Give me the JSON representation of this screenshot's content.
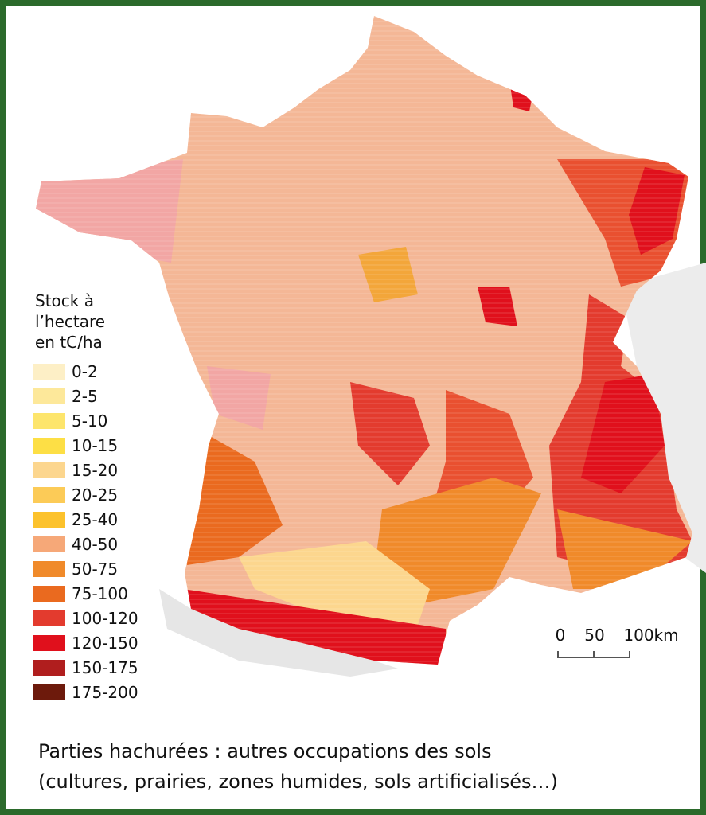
{
  "legend": {
    "title": [
      "Stock à",
      "l’hectare",
      "en tC/ha"
    ],
    "items": [
      {
        "label": "0-2",
        "color": "#fdefc6"
      },
      {
        "label": "2-5",
        "color": "#fde89a"
      },
      {
        "label": "5-10",
        "color": "#fde56c"
      },
      {
        "label": "10-15",
        "color": "#fddf45"
      },
      {
        "label": "15-20",
        "color": "#fcd68e"
      },
      {
        "label": "20-25",
        "color": "#fccb57"
      },
      {
        "label": "25-40",
        "color": "#fcc22c"
      },
      {
        "label": "40-50",
        "color": "#f6a878"
      },
      {
        "label": "50-75",
        "color": "#f08a2a"
      },
      {
        "label": "75-100",
        "color": "#ea6a1f"
      },
      {
        "label": "100-120",
        "color": "#e33b2e"
      },
      {
        "label": "120-150",
        "color": "#e0101c"
      },
      {
        "label": "150-175",
        "color": "#b01e1e"
      },
      {
        "label": "175-200",
        "color": "#6d1a0c"
      }
    ]
  },
  "scale": {
    "labels": [
      "0",
      "50",
      "100km"
    ]
  },
  "caption": [
    "Parties hachurées : autres occupations des sols",
    "(cultures, prairies, zones humides, sols artificialisés…)"
  ]
}
